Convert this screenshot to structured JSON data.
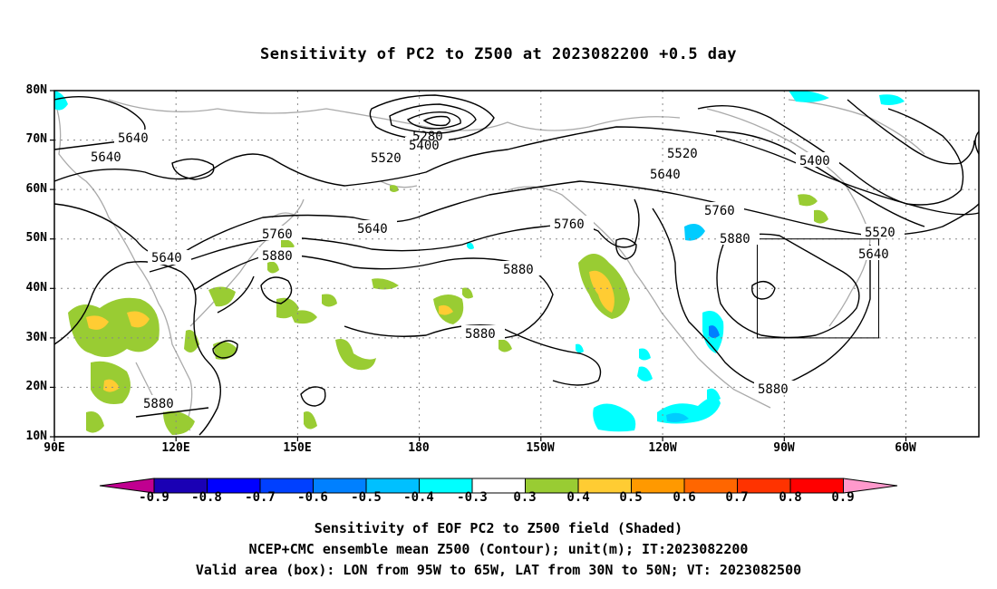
{
  "title": "Sensitivity of PC2 to Z500 at 2023082200 +0.5 day",
  "lat_labels": [
    "80N",
    "70N",
    "60N",
    "50N",
    "40N",
    "30N",
    "20N",
    "10N"
  ],
  "lon_labels": [
    "90E",
    "120E",
    "150E",
    "180",
    "150W",
    "120W",
    "90W",
    "60W"
  ],
  "contour_labels": [
    "5640",
    "5640",
    "5640",
    "5640",
    "5520",
    "5400",
    "5280",
    "5520",
    "5640",
    "5760",
    "5880",
    "5760",
    "5880",
    "5880",
    "5880",
    "5520",
    "5640",
    "5760",
    "5880",
    "5400",
    "5880"
  ],
  "colorbar": {
    "ticks": [
      "-0.9",
      "-0.8",
      "-0.7",
      "-0.6",
      "-0.5",
      "-0.4",
      "-0.3",
      "0.3",
      "0.4",
      "0.5",
      "0.6",
      "0.7",
      "0.8",
      "0.9"
    ],
    "colors": [
      "#c00090",
      "#1a00b4",
      "#0000ff",
      "#0040ff",
      "#0080ff",
      "#00c0ff",
      "#00ffff",
      "#ffffff",
      "#99cc33",
      "#ffcc33",
      "#ff9900",
      "#ff6600",
      "#ff3300",
      "#ff0000",
      "#ff99cc"
    ]
  },
  "captions": [
    "Sensitivity of EOF PC2 to Z500 field (Shaded)",
    "NCEP+CMC ensemble mean Z500 (Contour); unit(m); IT:2023082200",
    "Valid area (box): LON from 95W to 65W, LAT from 30N to 50N; VT: 2023082500"
  ]
}
